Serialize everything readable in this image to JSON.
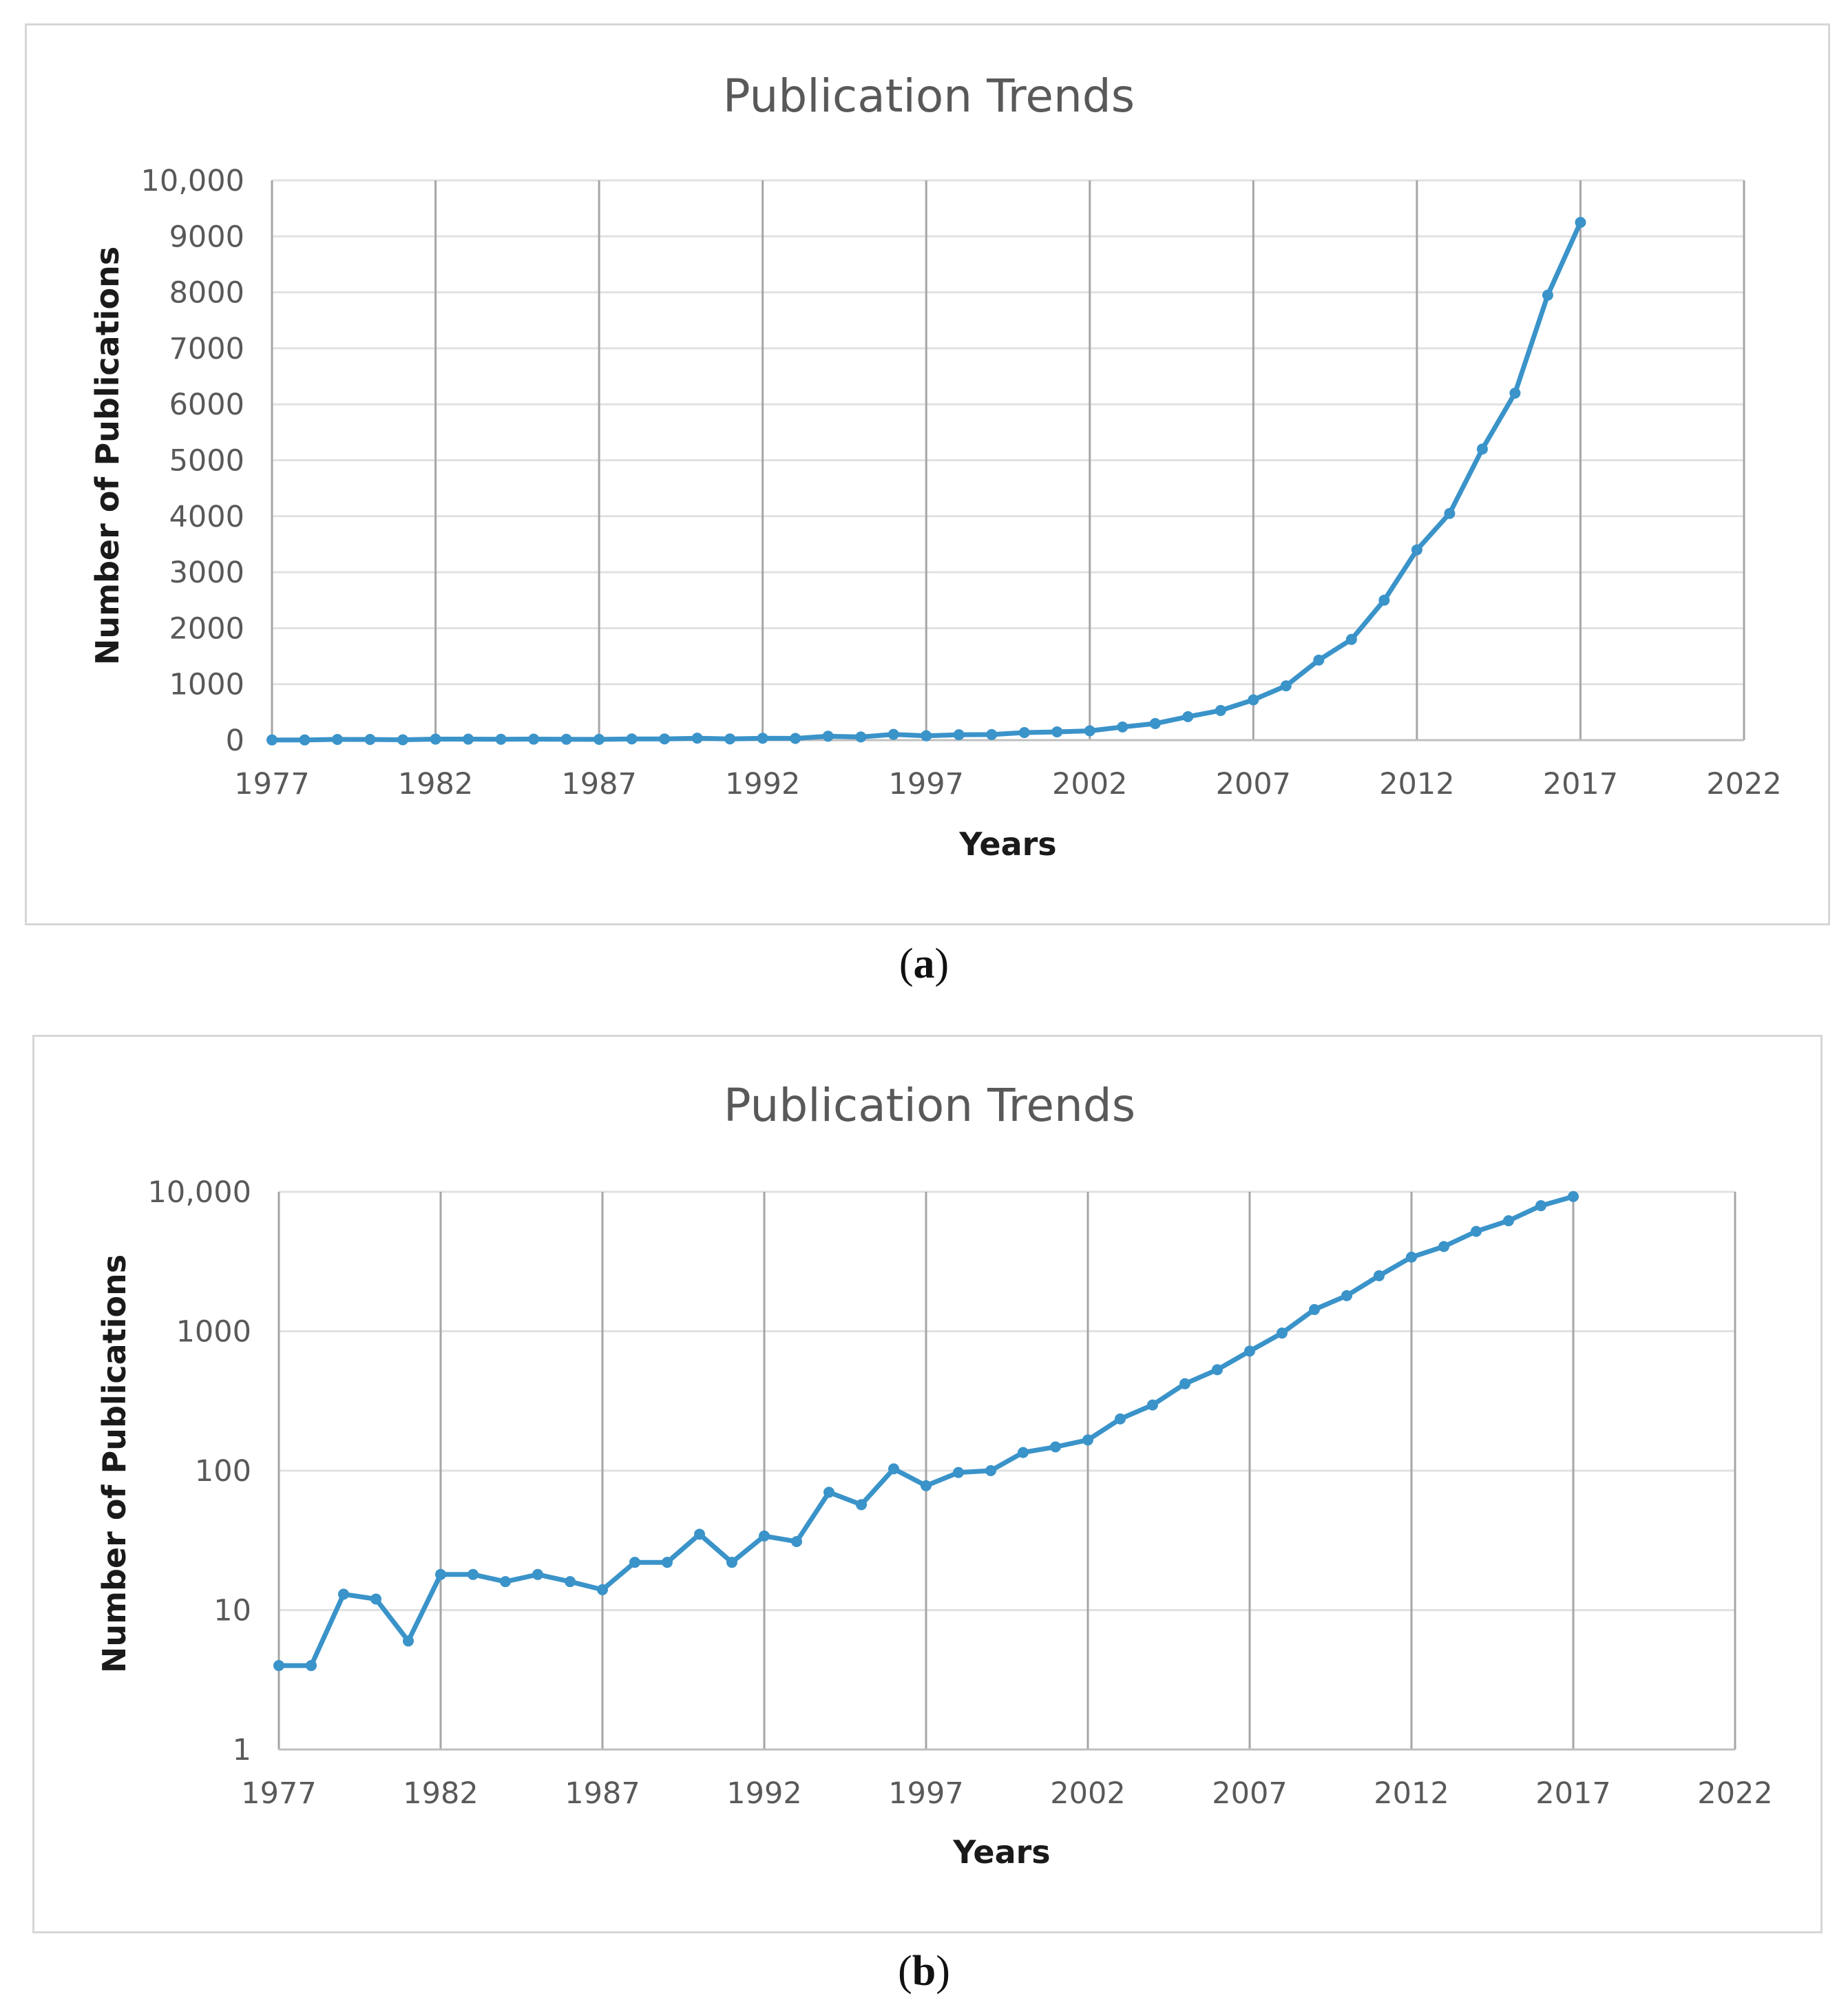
{
  "captions": {
    "a_open": "(",
    "a_letter": "a",
    "a_close": ")",
    "b_open": "(",
    "b_letter": "b",
    "b_close": ")"
  },
  "colors": {
    "series": "#3a93c9",
    "grid_vertical": "#a6a6a6",
    "grid_horizontal": "#e1e1e1",
    "text": "#595959"
  },
  "chart_data": [
    {
      "type": "line",
      "panel": "a",
      "title": "Publication Trends",
      "xlabel": "Years",
      "ylabel": "Number of Publications",
      "yscale": "linear",
      "xlim": [
        1977,
        2022
      ],
      "ylim": [
        0,
        10000
      ],
      "x_ticks": [
        1977,
        1982,
        1987,
        1992,
        1997,
        2002,
        2007,
        2012,
        2017,
        2022
      ],
      "x_tick_labels": [
        "1977",
        "1982",
        "1987",
        "1992",
        "1997",
        "2002",
        "2007",
        "2012",
        "2017",
        "2022"
      ],
      "y_ticks": [
        0,
        1000,
        2000,
        3000,
        4000,
        5000,
        6000,
        7000,
        8000,
        9000,
        10000
      ],
      "y_tick_labels": [
        "0",
        "1000",
        "2000",
        "3000",
        "4000",
        "5000",
        "6000",
        "7000",
        "8000",
        "9000",
        "10,000"
      ],
      "grid": "vertical-major",
      "series": [
        {
          "name": "Publications",
          "x": [
            1977,
            1978,
            1979,
            1980,
            1981,
            1982,
            1983,
            1984,
            1985,
            1986,
            1987,
            1988,
            1989,
            1990,
            1991,
            1992,
            1993,
            1994,
            1995,
            1996,
            1997,
            1998,
            1999,
            2000,
            2001,
            2002,
            2003,
            2004,
            2005,
            2006,
            2007,
            2008,
            2009,
            2010,
            2011,
            2012,
            2013,
            2014,
            2015,
            2016,
            2017
          ],
          "values": [
            4,
            4,
            13,
            12,
            6,
            18,
            18,
            16,
            18,
            16,
            14,
            22,
            22,
            35,
            22,
            34,
            31,
            70,
            57,
            103,
            78,
            97,
            100,
            135,
            148,
            166,
            235,
            296,
            420,
            530,
            720,
            970,
            1430,
            1800,
            2500,
            3400,
            4050,
            5200,
            6200,
            7950,
            9250
          ]
        }
      ]
    },
    {
      "type": "line",
      "panel": "b",
      "title": "Publication Trends",
      "xlabel": "Years",
      "ylabel": "Number of Publications",
      "yscale": "log",
      "xlim": [
        1977,
        2022
      ],
      "ylim": [
        1,
        10000
      ],
      "x_ticks": [
        1977,
        1982,
        1987,
        1992,
        1997,
        2002,
        2007,
        2012,
        2017,
        2022
      ],
      "x_tick_labels": [
        "1977",
        "1982",
        "1987",
        "1992",
        "1997",
        "2002",
        "2007",
        "2012",
        "2017",
        "2022"
      ],
      "y_ticks": [
        1,
        10,
        100,
        1000,
        10000
      ],
      "y_tick_labels": [
        "1",
        "10",
        "100",
        "1000",
        "10,000"
      ],
      "grid": "vertical-major",
      "series": [
        {
          "name": "Publications",
          "x": [
            1977,
            1978,
            1979,
            1980,
            1981,
            1982,
            1983,
            1984,
            1985,
            1986,
            1987,
            1988,
            1989,
            1990,
            1991,
            1992,
            1993,
            1994,
            1995,
            1996,
            1997,
            1998,
            1999,
            2000,
            2001,
            2002,
            2003,
            2004,
            2005,
            2006,
            2007,
            2008,
            2009,
            2010,
            2011,
            2012,
            2013,
            2014,
            2015,
            2016,
            2017
          ],
          "values": [
            4,
            4,
            13,
            12,
            6,
            18,
            18,
            16,
            18,
            16,
            14,
            22,
            22,
            35,
            22,
            34,
            31,
            70,
            57,
            103,
            78,
            97,
            100,
            135,
            148,
            166,
            235,
            296,
            420,
            530,
            720,
            970,
            1430,
            1800,
            2500,
            3400,
            4050,
            5200,
            6200,
            7950,
            9250
          ]
        }
      ]
    }
  ]
}
